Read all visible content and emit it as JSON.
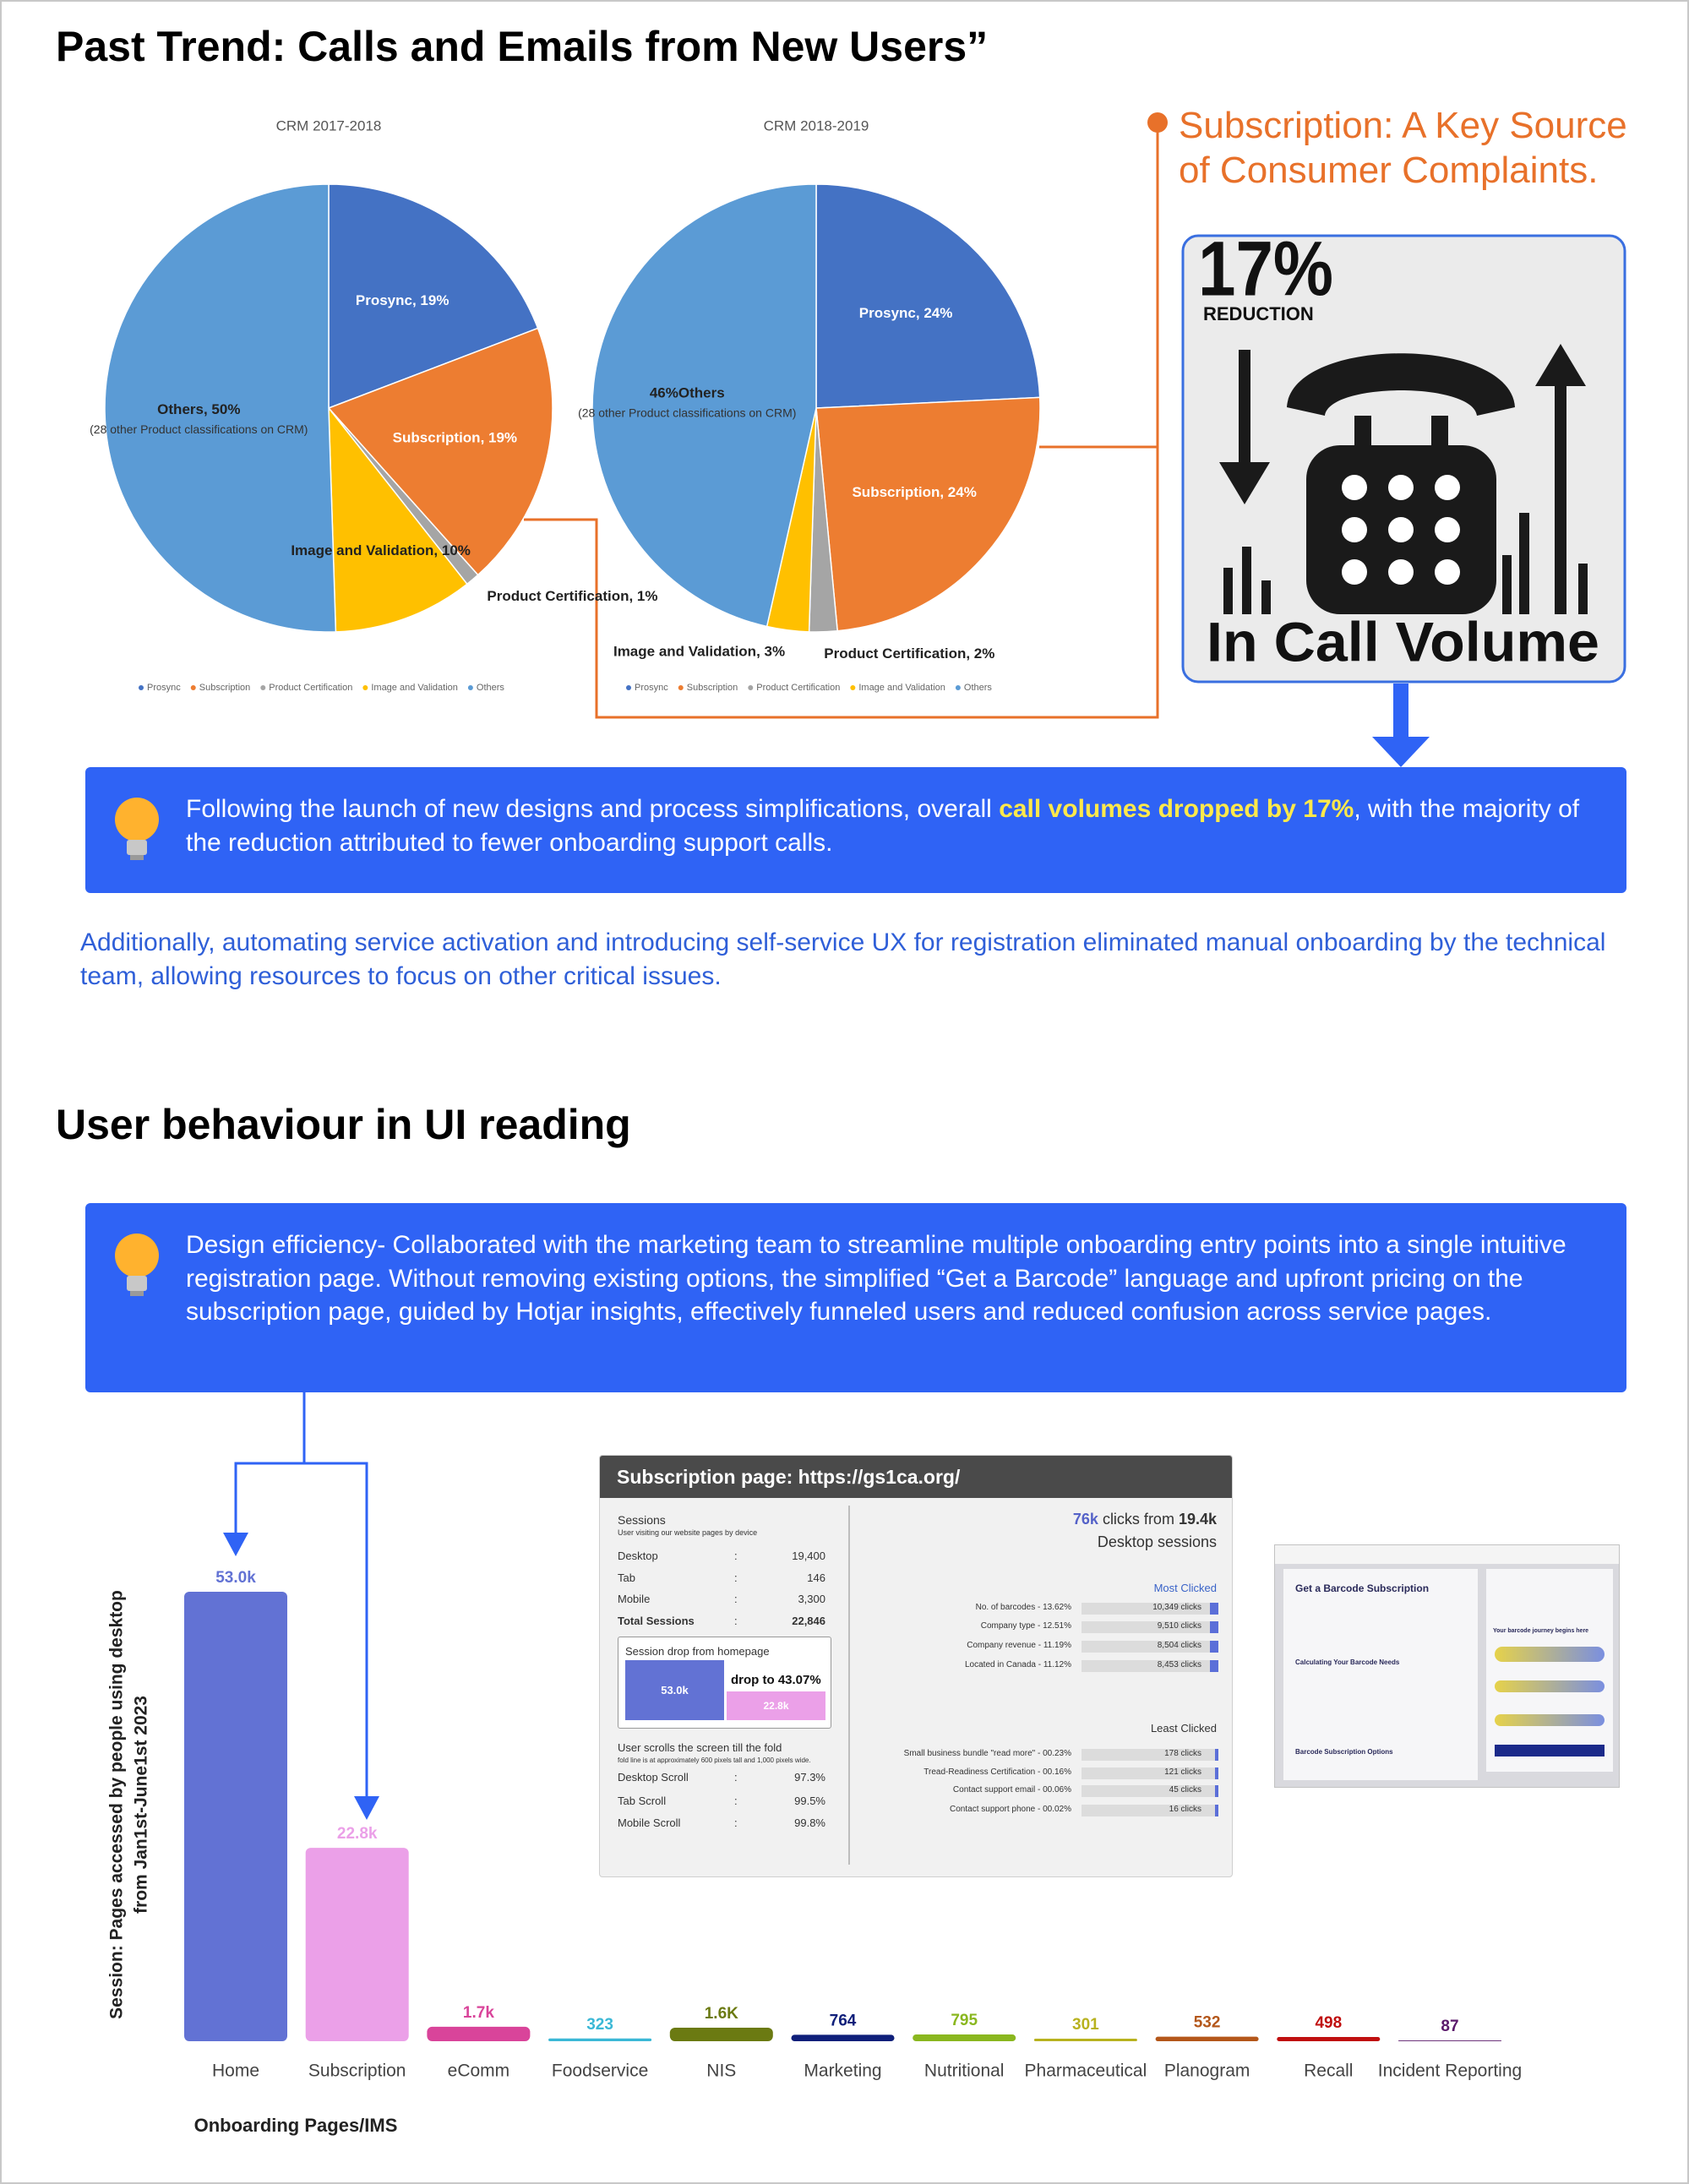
{
  "header": {
    "title": "Past Trend: Calls and Emails from New Users”"
  },
  "chart_data": [
    {
      "type": "pie",
      "title": "CRM 2017-2018",
      "categories": [
        "Prosync",
        "Subscription",
        "Product Certification",
        "Image and Validation",
        "Others"
      ],
      "values": [
        19,
        19,
        1,
        10,
        50
      ],
      "value_labels": [
        "Prosync, 19%",
        "Subscription, 19%",
        "Product Certification, 1%",
        "Image and Validation, 10%",
        "Others, 50%"
      ],
      "annotation": "(28 other Product classifications on CRM)",
      "colors": [
        "#4472c4",
        "#ed7d31",
        "#a5a5a5",
        "#ffc000",
        "#5b9bd5"
      ]
    },
    {
      "type": "pie",
      "title": "CRM 2018-2019",
      "categories": [
        "Prosync",
        "Subscription",
        "Product Certification",
        "Image and Validation",
        "Others"
      ],
      "values": [
        24,
        24,
        2,
        3,
        46
      ],
      "value_labels": [
        "Prosync, 24%",
        "Subscription, 24%",
        "Product Certification, 2%",
        "Image and Validation, 3%",
        "46%Others"
      ],
      "annotation": "(28 other Product classifications on CRM)",
      "colors": [
        "#4472c4",
        "#ed7d31",
        "#a5a5a5",
        "#ffc000",
        "#5b9bd5"
      ]
    },
    {
      "type": "bar",
      "categories": [
        "Home",
        "Subscription",
        "eComm",
        "Foodservice",
        "NIS",
        "Marketing",
        "Nutritional",
        "Pharmaceutical",
        "Planogram",
        "Recall",
        "Incident Reporting"
      ],
      "values": [
        53000,
        22800,
        1700,
        323,
        1600,
        764,
        795,
        301,
        532,
        498,
        87
      ],
      "value_labels": [
        "53.0k",
        "22.8k",
        "1.7k",
        "323",
        "1.6K",
        "764",
        "795",
        "301",
        "532",
        "498",
        "87"
      ],
      "colors": [
        "#6272d4",
        "#eba0e8",
        "#d9449a",
        "#3bb8d6",
        "#6b7a12",
        "#0f1f7a",
        "#8ab71f",
        "#b8b21f",
        "#b4571a",
        "#c00f0f",
        "#5b1a6b"
      ],
      "x_label": "Onboarding Pages/IMS",
      "y_label": [
        "Session: Pages accessed by people using desktop",
        "from Jan1st-June1st 2023"
      ]
    }
  ],
  "callout": "Subscription: A Key Source of Consumer Complaints.",
  "card": {
    "value": "17%",
    "label": "REDUCTION",
    "caption": "In Call Volume"
  },
  "summary": {
    "before": "Following the launch of new designs and process simplifications, overall",
    "highlight": "call volumes dropped by 17%",
    "after": ", with the majority of the reduction attributed to fewer onboarding support calls."
  },
  "note": "Additionally, automating service activation and introducing self-service UX for registration eliminated manual onboarding by the technical team, allowing resources to focus on other critical issues.",
  "section2": {
    "title": "User behaviour in UI reading",
    "text": "Design efficiency-  Collaborated with the marketing team to streamline multiple onboarding entry points into a single intuitive registration page. Without removing existing options, the simplified “Get a Barcode” language and upfront pricing on the subscription page, guided by Hotjar insights, effectively funneled users and reduced confusion across service pages."
  },
  "subscription_panel": {
    "title": "Subscription page: https://gs1ca.org/",
    "sessions_title": "Sessions",
    "sessions_note": "User visiting our website pages by device",
    "sessions": [
      [
        "Desktop",
        ":",
        "19,400"
      ],
      [
        "Tab",
        ":",
        "146"
      ],
      [
        "Mobile",
        ":",
        "3,300"
      ],
      [
        "Total Sessions",
        ":",
        "22,846"
      ]
    ],
    "drop_title": "Session drop from homepage",
    "drop_from": "53.0k",
    "drop_label": "drop to 43.07%",
    "drop_to": "22.8k",
    "scroll_title": "User scrolls the screen till the fold",
    "scroll_note": "fold line is at approximately 600 pixels tall and 1,000 pixels wide.",
    "scrolls": [
      [
        "Desktop Scroll",
        ":",
        "97.3%"
      ],
      [
        "Tab Scroll",
        ":",
        "99.5%"
      ],
      [
        "Mobile Scroll",
        ":",
        "99.8%"
      ]
    ],
    "clicks_total": "76k",
    "clicks_from": "clicks from",
    "clicks_sessions": "19.4k",
    "clicks_sub": "Desktop sessions",
    "most_title": "Most Clicked",
    "most": [
      [
        "No. of barcodes - 13.62%",
        "10,349 clicks"
      ],
      [
        "Company type - 12.51%",
        "9,510 clicks"
      ],
      [
        "Company revenue - 11.19%",
        "8,504 clicks"
      ],
      [
        "Located in Canada - 11.12%",
        "8,453 clicks"
      ]
    ],
    "least_title": "Least Clicked",
    "least": [
      [
        "Small business bundle \"read more\" - 00.23%",
        "178 clicks"
      ],
      [
        "Tread-Readiness Certification - 00.16%",
        "121 clicks"
      ],
      [
        "Contact support email - 00.06%",
        "45 clicks"
      ],
      [
        "Contact support phone - 00.02%",
        "16 clicks"
      ]
    ]
  },
  "thumbnail": {
    "heading": "Get a Barcode Subscription",
    "sub1": "Calculating Your Barcode Needs",
    "sub2": "Barcode Subscription Options",
    "side": "Your barcode journey begins here"
  }
}
